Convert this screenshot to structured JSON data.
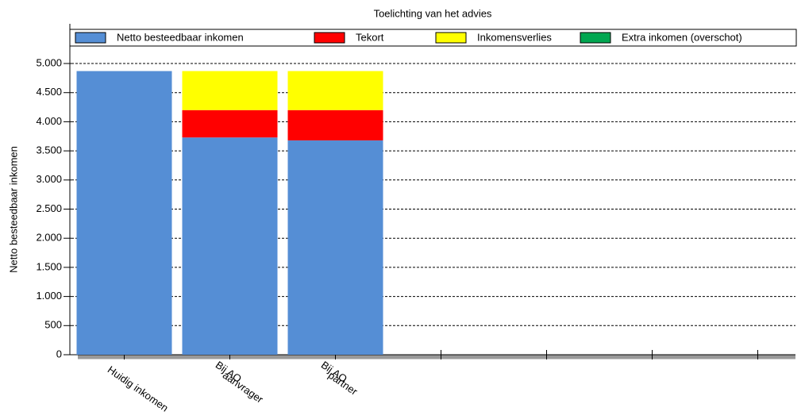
{
  "chart_data": {
    "type": "stacked_bar",
    "title": "Toelichting van het advies",
    "ylabel": "Netto besteedbaar inkomen",
    "categories": [
      "Huidig inkomen",
      [
        "Bij AO",
        "aanvrager"
      ],
      [
        "Bij AO",
        "partner"
      ],
      null,
      null,
      null,
      null
    ],
    "series": [
      {
        "name": "Netto besteedbaar inkomen",
        "color": "#558ed5",
        "values": [
          4870,
          3730,
          3680,
          null,
          null,
          null,
          null
        ]
      },
      {
        "name": "Tekort",
        "color": "#ff0000",
        "values": [
          0,
          470,
          520,
          null,
          null,
          null,
          null
        ]
      },
      {
        "name": "Inkomensverlies",
        "color": "#ffff00",
        "values": [
          0,
          670,
          670,
          null,
          null,
          null,
          null
        ]
      },
      {
        "name": "Extra inkomen (overschot)",
        "color": "#00a650",
        "values": [
          0,
          0,
          0,
          null,
          null,
          null,
          null
        ]
      }
    ],
    "ylim": [
      0,
      5300
    ],
    "yticks": [
      0,
      500,
      {
        "value": 1000,
        "label": "1.000"
      },
      {
        "value": 1500,
        "label": "1.500"
      },
      {
        "value": 2000,
        "label": "2.000"
      },
      {
        "value": 2500,
        "label": "2.500"
      },
      {
        "value": 3000,
        "label": "3.000"
      },
      {
        "value": 3500,
        "label": "3.500"
      },
      {
        "value": 4000,
        "label": "4.000"
      },
      {
        "value": 4500,
        "label": "4.500"
      },
      {
        "value": 5000,
        "label": "5.000"
      }
    ],
    "grid": true,
    "legend": "top"
  }
}
